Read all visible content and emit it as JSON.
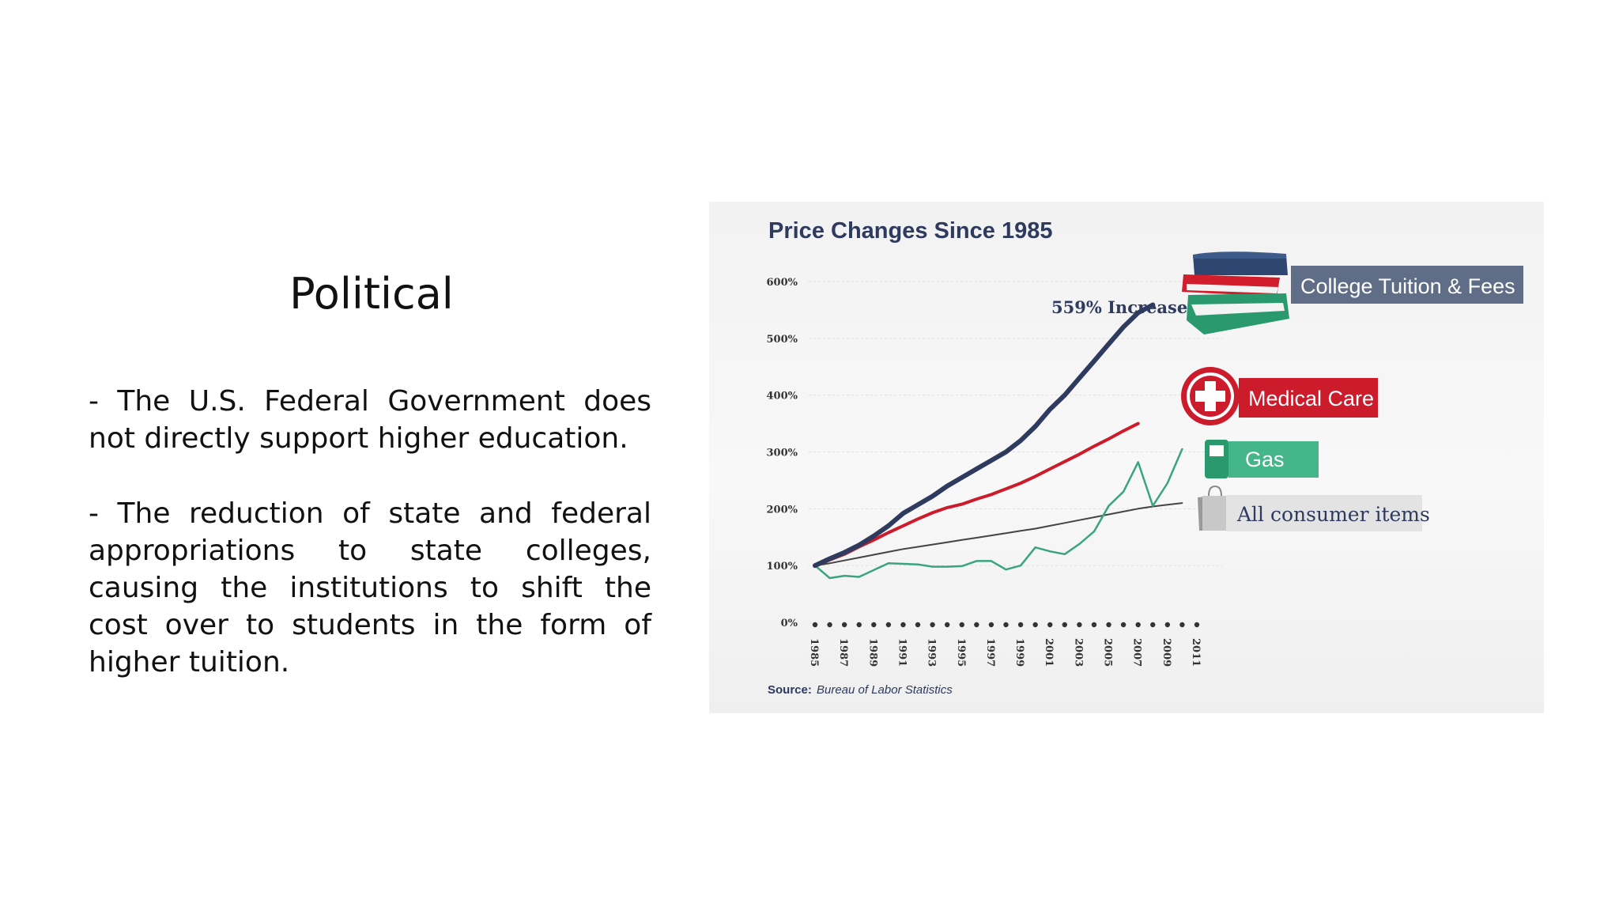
{
  "slide": {
    "title": "Political",
    "bullets": [
      "- The U.S. Federal Government does not directly support higher education.",
      "- The reduction of state and federal appropriations to state colleges, causing the institutions to shift the cost over to students in the form of higher tuition."
    ]
  },
  "chart_data": {
    "type": "line",
    "title": "Price Changes Since 1985",
    "source_label": "Source:",
    "source_text": "Bureau of Labor Statistics",
    "annotation": "559% Increase",
    "x": [
      1985,
      1986,
      1987,
      1988,
      1989,
      1990,
      1991,
      1992,
      1993,
      1994,
      1995,
      1996,
      1997,
      1998,
      1999,
      2000,
      2001,
      2002,
      2003,
      2004,
      2005,
      2006,
      2007,
      2008,
      2009,
      2010,
      2011
    ],
    "x_ticks": [
      "1985",
      "1987",
      "1989",
      "1991",
      "1993",
      "1995",
      "1997",
      "1999",
      "2001",
      "2003",
      "2005",
      "2007",
      "2009",
      "2011"
    ],
    "y_ticks": [
      "0%",
      "100%",
      "200%",
      "300%",
      "400%",
      "500%",
      "600%"
    ],
    "ylim": [
      0,
      600
    ],
    "xlim": [
      1985,
      2011
    ],
    "grid": true,
    "series": [
      {
        "name": "College Tuition & Fees",
        "color": "#2e3a5e",
        "values": [
          100,
          112,
          123,
          136,
          152,
          170,
          192,
          207,
          222,
          240,
          255,
          270,
          285,
          300,
          320,
          345,
          375,
          400,
          430,
          460,
          490,
          520,
          545,
          559,
          null,
          null,
          null
        ]
      },
      {
        "name": "Medical Care",
        "color": "#cc1b2b",
        "values": [
          100,
          110,
          120,
          133,
          145,
          158,
          170,
          182,
          193,
          202,
          208,
          217,
          225,
          235,
          245,
          257,
          270,
          283,
          296,
          310,
          323,
          337,
          350,
          null,
          null,
          null,
          null
        ]
      },
      {
        "name": "Gas",
        "color": "#3aa57c",
        "values": [
          100,
          78,
          82,
          80,
          92,
          104,
          103,
          102,
          98,
          98,
          99,
          108,
          108,
          93,
          100,
          132,
          125,
          120,
          138,
          160,
          205,
          230,
          282,
          205,
          245,
          305,
          null
        ]
      },
      {
        "name": "All consumer items",
        "color": "#444444",
        "values": [
          100,
          104,
          109,
          114,
          119,
          124,
          129,
          133,
          137,
          141,
          145,
          149,
          153,
          157,
          161,
          165,
          170,
          175,
          180,
          185,
          190,
          195,
          200,
          204,
          207,
          210,
          null
        ]
      }
    ]
  }
}
